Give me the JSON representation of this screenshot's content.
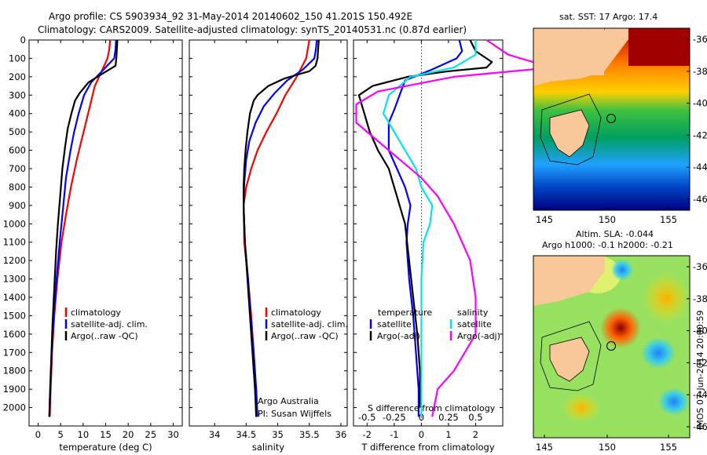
{
  "title": {
    "line1": "Argo profile: CS 5903934_92 31-May-2014 20140602_150 41.201S 150.492E",
    "line2": "Climatology: CARS2009. Satellite-adjusted climatology: synTS_20140531.nc (0.87d earlier)"
  },
  "side_stamp": "IMOS 07-Jun-2014 20:00:59",
  "colors": {
    "climatology": "#ff0000",
    "satellite": "#0000ff",
    "argo": "#000000",
    "sal_satellite": "#00e5ee",
    "sal_argo": "#ff00ff"
  },
  "chart_data": [
    {
      "type": "line",
      "id": "temperature",
      "xlabel": "temperature (deg C)",
      "ylim": [
        2100,
        0
      ],
      "yticks": [
        0,
        100,
        200,
        300,
        400,
        500,
        600,
        700,
        800,
        900,
        1000,
        1100,
        1200,
        1300,
        1400,
        1500,
        1600,
        1700,
        1800,
        1900,
        2000
      ],
      "xlim": [
        -2,
        32
      ],
      "xticks": [
        0,
        5,
        10,
        15,
        20,
        25,
        30
      ],
      "legend": [
        "climatology",
        "satellite-adj. clim.",
        "Argo(..raw -QC)"
      ],
      "series": [
        {
          "name": "climatology",
          "color": "#ff0000",
          "points": [
            [
              16.0,
              0
            ],
            [
              15.8,
              50
            ],
            [
              15.4,
              100
            ],
            [
              14.5,
              150
            ],
            [
              12.6,
              250
            ],
            [
              11.6,
              350
            ],
            [
              10.6,
              450
            ],
            [
              9.6,
              550
            ],
            [
              8.6,
              650
            ],
            [
              7.3,
              800
            ],
            [
              6.2,
              950
            ],
            [
              5.2,
              1100
            ],
            [
              4.3,
              1300
            ],
            [
              3.6,
              1500
            ],
            [
              3.1,
              1700
            ],
            [
              2.8,
              1900
            ],
            [
              2.6,
              2050
            ]
          ]
        },
        {
          "name": "satellite-adj. clim.",
          "color": "#0000ff",
          "points": [
            [
              17.3,
              0
            ],
            [
              17.2,
              50
            ],
            [
              16.9,
              100
            ],
            [
              14.2,
              170
            ],
            [
              11.8,
              230
            ],
            [
              10.2,
              300
            ],
            [
              9.0,
              400
            ],
            [
              8.0,
              500
            ],
            [
              7.2,
              600
            ],
            [
              6.2,
              750
            ],
            [
              5.6,
              900
            ],
            [
              4.8,
              1100
            ],
            [
              4.1,
              1300
            ],
            [
              3.5,
              1500
            ],
            [
              3.0,
              1700
            ],
            [
              2.7,
              1900
            ],
            [
              2.5,
              2050
            ]
          ]
        },
        {
          "name": "Argo(..raw -QC)",
          "color": "#000000",
          "points": [
            [
              17.6,
              0
            ],
            [
              17.5,
              50
            ],
            [
              17.4,
              90
            ],
            [
              17.2,
              140
            ],
            [
              14.5,
              180
            ],
            [
              11.2,
              230
            ],
            [
              9.2,
              290
            ],
            [
              8.2,
              330
            ],
            [
              7.4,
              400
            ],
            [
              6.6,
              480
            ],
            [
              6.0,
              580
            ],
            [
              5.4,
              700
            ],
            [
              4.9,
              850
            ],
            [
              4.4,
              1000
            ],
            [
              4.0,
              1150
            ],
            [
              3.6,
              1350
            ],
            [
              3.2,
              1550
            ],
            [
              2.9,
              1750
            ],
            [
              2.6,
              1950
            ],
            [
              2.5,
              2050
            ]
          ]
        }
      ]
    },
    {
      "type": "line",
      "id": "salinity",
      "xlabel": "salinity",
      "ylim": [
        2100,
        0
      ],
      "xlim": [
        33.6,
        36.1
      ],
      "xticks": [
        34,
        34.5,
        35,
        35.5,
        36
      ],
      "legend": [
        "climatology",
        "satellite-adj. clim.",
        "Argo(..raw -QC)"
      ],
      "annotation": [
        "Argo Australia",
        "PI: Susan Wijffels"
      ],
      "series": [
        {
          "name": "climatology",
          "color": "#ff0000",
          "points": [
            [
              35.5,
              0
            ],
            [
              35.45,
              100
            ],
            [
              35.3,
              200
            ],
            [
              35.12,
              300
            ],
            [
              34.98,
              400
            ],
            [
              34.82,
              500
            ],
            [
              34.68,
              600
            ],
            [
              34.58,
              700
            ],
            [
              34.5,
              800
            ],
            [
              34.46,
              900
            ],
            [
              34.47,
              1100
            ],
            [
              34.53,
              1300
            ],
            [
              34.58,
              1500
            ],
            [
              34.62,
              1700
            ],
            [
              34.65,
              1900
            ],
            [
              34.66,
              2050
            ]
          ]
        },
        {
          "name": "satellite-adj. clim.",
          "color": "#0000ff",
          "points": [
            [
              35.62,
              0
            ],
            [
              35.6,
              60
            ],
            [
              35.58,
              100
            ],
            [
              35.4,
              160
            ],
            [
              35.15,
              220
            ],
            [
              34.95,
              290
            ],
            [
              34.78,
              360
            ],
            [
              34.65,
              450
            ],
            [
              34.55,
              550
            ],
            [
              34.5,
              650
            ],
            [
              34.47,
              780
            ],
            [
              34.46,
              900
            ],
            [
              34.48,
              1100
            ],
            [
              34.53,
              1300
            ],
            [
              34.57,
              1500
            ],
            [
              34.62,
              1700
            ],
            [
              34.66,
              1900
            ],
            [
              34.68,
              2050
            ]
          ]
        },
        {
          "name": "Argo(..raw -QC)",
          "color": "#000000",
          "points": [
            [
              35.65,
              0
            ],
            [
              35.64,
              50
            ],
            [
              35.63,
              100
            ],
            [
              35.6,
              140
            ],
            [
              35.5,
              170
            ],
            [
              35.1,
              210
            ],
            [
              34.85,
              250
            ],
            [
              34.68,
              300
            ],
            [
              34.62,
              330
            ],
            [
              34.56,
              400
            ],
            [
              34.52,
              500
            ],
            [
              34.49,
              600
            ],
            [
              34.47,
              700
            ],
            [
              34.46,
              800
            ],
            [
              34.46,
              900
            ],
            [
              34.48,
              1100
            ],
            [
              34.52,
              1300
            ],
            [
              34.56,
              1500
            ],
            [
              34.6,
              1700
            ],
            [
              34.64,
              1900
            ],
            [
              34.66,
              2050
            ]
          ]
        }
      ]
    },
    {
      "type": "line",
      "id": "difference",
      "xlabel": "T difference from climatology",
      "xlabel2": "S difference from climatology",
      "ylim": [
        2100,
        0
      ],
      "xlim": [
        -2.5,
        3.0
      ],
      "xticks": [
        -2,
        -1,
        0,
        1,
        2
      ],
      "s_xticks": [
        "-0.5",
        "-0.25",
        "0",
        "0.25",
        "0.5"
      ],
      "legend_left_title": "temperature",
      "legend_right_title": "salinity",
      "legend": [
        "satellite",
        "Argo(-adj)",
        "satellite",
        "Argo(-adj)"
      ],
      "series": [
        {
          "name": "T satellite",
          "color": "#0000ff",
          "points": [
            [
              1.4,
              0
            ],
            [
              1.5,
              60
            ],
            [
              1.3,
              100
            ],
            [
              0.4,
              160
            ],
            [
              -0.6,
              220
            ],
            [
              -0.8,
              300
            ],
            [
              -1.0,
              380
            ],
            [
              -1.2,
              450
            ],
            [
              -1.2,
              600
            ],
            [
              -0.9,
              700
            ],
            [
              -0.6,
              800
            ],
            [
              -0.4,
              900
            ],
            [
              -0.5,
              1000
            ],
            [
              -0.55,
              1100
            ],
            [
              -0.45,
              1300
            ],
            [
              -0.3,
              1500
            ],
            [
              -0.2,
              1700
            ],
            [
              -0.1,
              1900
            ],
            [
              -0.1,
              2050
            ]
          ]
        },
        {
          "name": "T Argo(-adj)",
          "color": "#000000",
          "points": [
            [
              1.8,
              0
            ],
            [
              2.0,
              60
            ],
            [
              2.6,
              120
            ],
            [
              2.4,
              150
            ],
            [
              1.0,
              170
            ],
            [
              -0.5,
              200
            ],
            [
              -1.8,
              250
            ],
            [
              -2.3,
              300
            ],
            [
              -2.1,
              400
            ],
            [
              -1.9,
              500
            ],
            [
              -1.6,
              600
            ],
            [
              -1.2,
              700
            ],
            [
              -1.0,
              800
            ],
            [
              -0.8,
              900
            ],
            [
              -0.6,
              1000
            ],
            [
              -0.45,
              1200
            ],
            [
              -0.3,
              1400
            ],
            [
              -0.15,
              1600
            ],
            [
              -0.05,
              1800
            ],
            [
              -0.05,
              2000
            ]
          ]
        },
        {
          "name": "S satellite",
          "color": "#00e5ee",
          "points": [
            [
              0.5,
              0
            ],
            [
              0.5,
              80
            ],
            [
              0.3,
              150
            ],
            [
              -0.1,
              200
            ],
            [
              -0.3,
              300
            ],
            [
              -0.35,
              400
            ],
            [
              -0.25,
              500
            ],
            [
              -0.15,
              600
            ],
            [
              -0.05,
              700
            ],
            [
              0.0,
              800
            ],
            [
              0.1,
              900
            ],
            [
              0.08,
              1000
            ],
            [
              0.02,
              1100
            ],
            [
              0.0,
              1300
            ],
            [
              0.0,
              1500
            ],
            [
              0.0,
              1700
            ],
            [
              0.0,
              1900
            ],
            [
              0.0,
              2050
            ]
          ]
        },
        {
          "name": "S Argo(-adj)",
          "color": "#ff00ff",
          "points": [
            [
              0.6,
              0
            ],
            [
              0.8,
              80
            ],
            [
              1.2,
              150
            ],
            [
              0.3,
              200
            ],
            [
              -0.4,
              280
            ],
            [
              -0.6,
              350
            ],
            [
              -0.6,
              450
            ],
            [
              -0.4,
              550
            ],
            [
              -0.2,
              650
            ],
            [
              0.0,
              750
            ],
            [
              0.15,
              850
            ],
            [
              0.3,
              1000
            ],
            [
              0.45,
              1200
            ],
            [
              0.5,
              1400
            ],
            [
              0.5,
              1600
            ],
            [
              0.3,
              1800
            ],
            [
              0.15,
              1900
            ],
            [
              0.1,
              2050
            ]
          ]
        }
      ]
    }
  ],
  "maps": [
    {
      "id": "sst",
      "title": "sat. SST: 17 Argo: 17.4",
      "xticks": [
        "145",
        "150",
        "155"
      ],
      "yticks": [
        "-36",
        "-38",
        "-40",
        "-42",
        "-44",
        "-46"
      ]
    },
    {
      "id": "sla",
      "title1": "Altim. SLA: -0.044",
      "title2": "Argo h1000: -0.1 h2000: -0.21",
      "xticks": [
        "145",
        "150",
        "155"
      ],
      "yticks": [
        "-36",
        "-38",
        "-40",
        "-42",
        "-44",
        "-46"
      ]
    }
  ]
}
